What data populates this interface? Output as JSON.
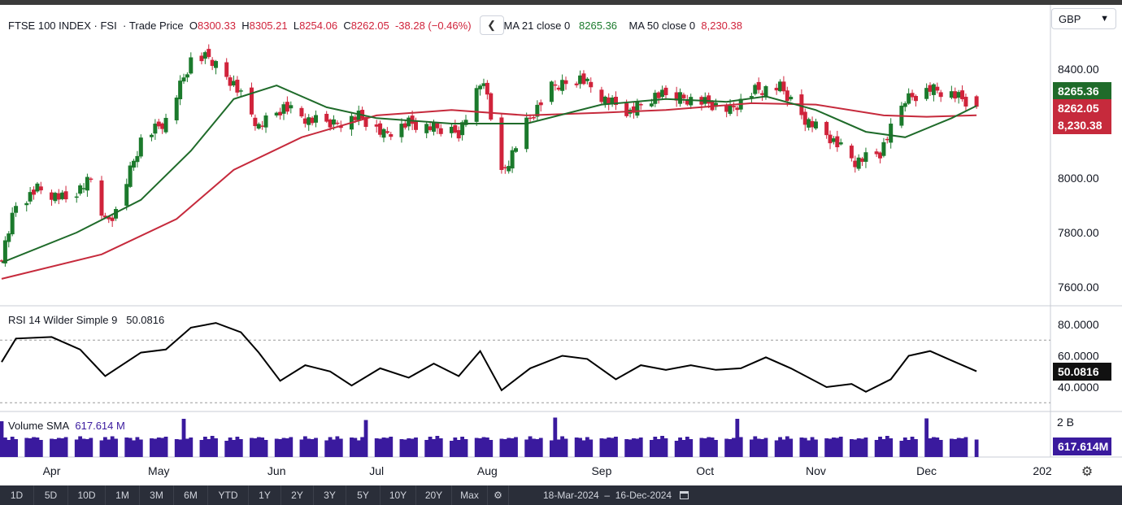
{
  "header": {
    "symbol": "FTSE 100 INDEX",
    "sep1": "·",
    "exchange": "FSI",
    "sep2": "·",
    "price_type": "Trade Price",
    "o_label": "O",
    "o_value": "8300.33",
    "h_label": "H",
    "h_value": "8305.21",
    "l_label": "L",
    "l_value": "8254.06",
    "c_label": "C",
    "c_value": "8262.05",
    "change": "-38.28 (−0.46%)",
    "collapse_icon": "chevron-left-icon",
    "ma21_label": "MA 21 close 0",
    "ma21_value": "8265.36",
    "ma50_label": "MA 50 close 0",
    "ma50_value": "8,230.38"
  },
  "currency": {
    "label": "GBP",
    "icon": "chevron-down-icon"
  },
  "price_axis": {
    "ticks": [
      "8400.00",
      "8000.00",
      "7800.00",
      "7600.00"
    ]
  },
  "price_tags": {
    "ma21": "8265.36",
    "close": "8262.05",
    "ma50": "8,230.38"
  },
  "rsi": {
    "label": "RSI 14 Wilder Simple 9",
    "value": "50.0816",
    "ticks": [
      "80.0000",
      "60.0000",
      "40.0000"
    ],
    "tag": "50.0816"
  },
  "volume": {
    "label": "Volume SMA",
    "value": "617.614 M",
    "tick": "2 B",
    "tag": "617.614M"
  },
  "x_axis": {
    "labels": [
      "Apr",
      "May",
      "Jun",
      "Jul",
      "Aug",
      "Sep",
      "Oct",
      "Nov",
      "Dec",
      "202"
    ]
  },
  "bottom_bar": {
    "timeframes": [
      "1D",
      "5D",
      "10D",
      "1M",
      "3M",
      "6M",
      "YTD",
      "1Y",
      "2Y",
      "3Y",
      "5Y",
      "10Y",
      "20Y",
      "Max"
    ],
    "gear_icon": "gear-icon",
    "range_start": "18-Mar-2024",
    "range_sep": "–",
    "range_end": "16-Dec-2024",
    "calendar_icon": "calendar-icon"
  },
  "settings_icon": "settings-icon",
  "colors": {
    "up": "#1b7a2c",
    "down": "#d0233b",
    "ma21": "#1f6b2a",
    "ma50": "#c62a3c",
    "rsi": "#000000",
    "volume": "#3a1a9e",
    "bg": "#ffffff"
  },
  "chart_data": {
    "type": "candlestick",
    "instrument": "FTSE 100 INDEX",
    "period": "18-Mar-2024 to 16-Dec-2024",
    "y_range": [
      7590,
      8600
    ],
    "last_bar": {
      "open": 8300.33,
      "high": 8305.21,
      "low": 8254.06,
      "close": 8262.05
    },
    "close_path": [
      [
        "2024-03-18",
        7720
      ],
      [
        "2024-03-22",
        7900
      ],
      [
        "2024-03-28",
        7960
      ],
      [
        "2024-04-05",
        7920
      ],
      [
        "2024-04-12",
        7990
      ],
      [
        "2024-04-16",
        7840
      ],
      [
        "2024-04-19",
        7880
      ],
      [
        "2024-04-26",
        8140
      ],
      [
        "2024-05-03",
        8210
      ],
      [
        "2024-05-10",
        8430
      ],
      [
        "2024-05-15",
        8440
      ],
      [
        "2024-05-22",
        8350
      ],
      [
        "2024-05-29",
        8190
      ],
      [
        "2024-06-05",
        8260
      ],
      [
        "2024-06-12",
        8210
      ],
      [
        "2024-06-19",
        8200
      ],
      [
        "2024-06-26",
        8230
      ],
      [
        "2024-07-03",
        8160
      ],
      [
        "2024-07-10",
        8200
      ],
      [
        "2024-07-17",
        8180
      ],
      [
        "2024-07-24",
        8170
      ],
      [
        "2024-07-31",
        8370
      ],
      [
        "2024-08-05",
        8010
      ],
      [
        "2024-08-12",
        8200
      ],
      [
        "2024-08-19",
        8330
      ],
      [
        "2024-08-27",
        8370
      ],
      [
        "2024-09-03",
        8290
      ],
      [
        "2024-09-10",
        8240
      ],
      [
        "2024-09-17",
        8300
      ],
      [
        "2024-09-24",
        8300
      ],
      [
        "2024-10-01",
        8280
      ],
      [
        "2024-10-08",
        8250
      ],
      [
        "2024-10-15",
        8320
      ],
      [
        "2024-10-22",
        8330
      ],
      [
        "2024-10-29",
        8220
      ],
      [
        "2024-11-05",
        8150
      ],
      [
        "2024-11-12",
        8060
      ],
      [
        "2024-11-19",
        8090
      ],
      [
        "2024-11-26",
        8290
      ],
      [
        "2024-12-03",
        8330
      ],
      [
        "2024-12-09",
        8310
      ],
      [
        "2024-12-16",
        8262
      ]
    ],
    "ma21_path": [
      [
        "2024-03-18",
        7690
      ],
      [
        "2024-04-08",
        7800
      ],
      [
        "2024-04-26",
        7920
      ],
      [
        "2024-05-10",
        8100
      ],
      [
        "2024-05-22",
        8290
      ],
      [
        "2024-06-03",
        8340
      ],
      [
        "2024-06-17",
        8260
      ],
      [
        "2024-07-01",
        8220
      ],
      [
        "2024-07-22",
        8200
      ],
      [
        "2024-08-12",
        8200
      ],
      [
        "2024-09-02",
        8270
      ],
      [
        "2024-09-20",
        8290
      ],
      [
        "2024-10-07",
        8280
      ],
      [
        "2024-10-18",
        8300
      ],
      [
        "2024-11-01",
        8250
      ],
      [
        "2024-11-15",
        8170
      ],
      [
        "2024-11-26",
        8150
      ],
      [
        "2024-12-09",
        8220
      ],
      [
        "2024-12-16",
        8265.36
      ]
    ],
    "ma50_path": [
      [
        "2024-03-18",
        7630
      ],
      [
        "2024-04-15",
        7720
      ],
      [
        "2024-05-06",
        7850
      ],
      [
        "2024-05-22",
        8030
      ],
      [
        "2024-06-10",
        8150
      ],
      [
        "2024-07-01",
        8230
      ],
      [
        "2024-07-22",
        8250
      ],
      [
        "2024-08-12",
        8230
      ],
      [
        "2024-09-02",
        8240
      ],
      [
        "2024-09-20",
        8250
      ],
      [
        "2024-10-14",
        8275
      ],
      [
        "2024-11-01",
        8270
      ],
      [
        "2024-11-20",
        8230
      ],
      [
        "2024-12-02",
        8225
      ],
      [
        "2024-12-16",
        8230.38
      ]
    ],
    "rsi_path": [
      [
        "2024-03-18",
        56
      ],
      [
        "2024-03-22",
        71
      ],
      [
        "2024-04-01",
        72
      ],
      [
        "2024-04-09",
        64
      ],
      [
        "2024-04-16",
        47
      ],
      [
        "2024-04-26",
        62
      ],
      [
        "2024-05-03",
        64
      ],
      [
        "2024-05-10",
        78
      ],
      [
        "2024-05-17",
        81
      ],
      [
        "2024-05-24",
        75
      ],
      [
        "2024-05-29",
        62
      ],
      [
        "2024-06-04",
        44
      ],
      [
        "2024-06-11",
        54
      ],
      [
        "2024-06-18",
        50
      ],
      [
        "2024-06-24",
        41
      ],
      [
        "2024-07-02",
        52
      ],
      [
        "2024-07-10",
        46
      ],
      [
        "2024-07-17",
        55
      ],
      [
        "2024-07-24",
        47
      ],
      [
        "2024-07-30",
        63
      ],
      [
        "2024-08-05",
        38
      ],
      [
        "2024-08-13",
        52
      ],
      [
        "2024-08-22",
        60
      ],
      [
        "2024-08-29",
        58
      ],
      [
        "2024-09-06",
        45
      ],
      [
        "2024-09-13",
        54
      ],
      [
        "2024-09-20",
        51
      ],
      [
        "2024-09-27",
        54
      ],
      [
        "2024-10-04",
        51
      ],
      [
        "2024-10-11",
        52
      ],
      [
        "2024-10-18",
        59
      ],
      [
        "2024-10-25",
        52
      ],
      [
        "2024-11-04",
        40
      ],
      [
        "2024-11-11",
        42
      ],
      [
        "2024-11-15",
        37
      ],
      [
        "2024-11-22",
        45
      ],
      [
        "2024-11-27",
        60
      ],
      [
        "2024-12-03",
        63
      ],
      [
        "2024-12-09",
        57
      ],
      [
        "2024-12-16",
        50.0816
      ]
    ],
    "rsi_ylim": [
      30,
      85
    ],
    "rsi_bands": [
      70,
      30
    ],
    "volume_sma": "617.614 M"
  }
}
